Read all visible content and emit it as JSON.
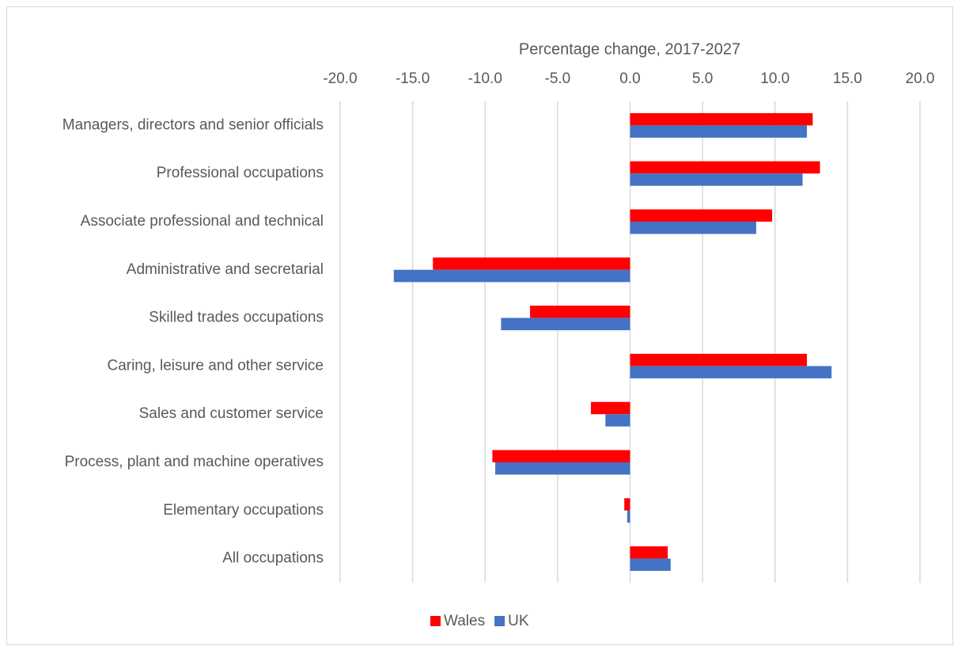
{
  "chart_data": {
    "type": "hbar",
    "title": "Percentage change, 2017-2027",
    "categories": [
      "Managers, directors and senior officials",
      "Professional occupations",
      "Associate professional and technical",
      "Administrative and secretarial",
      "Skilled trades occupations",
      "Caring, leisure and other service",
      "Sales and customer service",
      "Process, plant and machine operatives",
      "Elementary occupations",
      "All occupations"
    ],
    "series": [
      {
        "name": "Wales",
        "color": "#ff0000",
        "values": [
          12.6,
          13.1,
          9.8,
          -13.6,
          -6.9,
          12.2,
          -2.7,
          -9.5,
          -0.4,
          2.6
        ]
      },
      {
        "name": "UK",
        "color": "#4472c4",
        "values": [
          12.2,
          11.9,
          8.7,
          -16.3,
          -8.9,
          13.9,
          -1.7,
          -9.3,
          -0.2,
          2.8
        ]
      }
    ],
    "xlim": [
      -20,
      20
    ],
    "xticks": [
      {
        "value": -20,
        "label": "-20.0"
      },
      {
        "value": -15,
        "label": "-15.0"
      },
      {
        "value": -10,
        "label": "-10.0"
      },
      {
        "value": -5,
        "label": "-5.0"
      },
      {
        "value": 0,
        "label": "0.0"
      },
      {
        "value": 5,
        "label": "5.0"
      },
      {
        "value": 10,
        "label": "10.0"
      },
      {
        "value": 15,
        "label": "15.0"
      },
      {
        "value": 20,
        "label": "20.0"
      }
    ],
    "grid": true,
    "legend": "bottom"
  }
}
